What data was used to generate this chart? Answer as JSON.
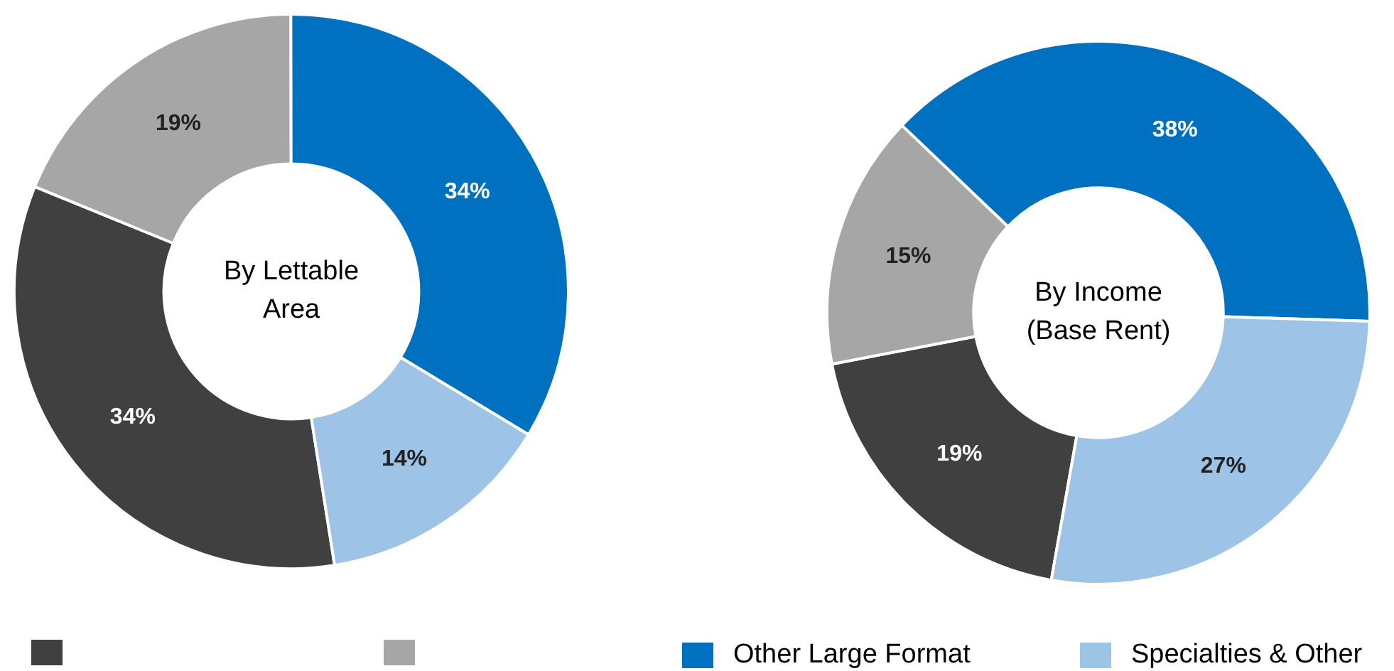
{
  "chart_data": [
    {
      "type": "donut",
      "title": "By Lettable Area",
      "categories": [
        null,
        null,
        "Other Large Format",
        "Specialties & Other"
      ],
      "values": [
        34,
        19,
        34,
        14
      ],
      "colors": [
        "#404040",
        "#a6a6a6",
        "#0070c0",
        "#9dc3e6"
      ],
      "value_labels": [
        "34%",
        "19%",
        "34%",
        "14%"
      ],
      "legend": "bottom"
    },
    {
      "type": "donut",
      "title": "By Income (Base Rent)",
      "categories": [
        null,
        null,
        null,
        null
      ],
      "values": [
        19,
        15,
        38,
        27
      ],
      "colors": [
        "#404040",
        "#a6a6a6",
        "#0070c0",
        "#9dc3e6"
      ],
      "value_labels": [
        "19%",
        "15%",
        "38%",
        "27%"
      ]
    }
  ]
}
